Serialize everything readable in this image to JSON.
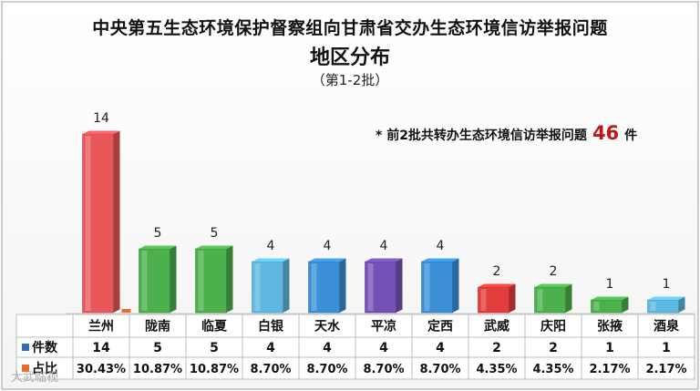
{
  "header": {
    "title": "中央第五生态环境保护督察组向甘肃省交办生态环境信访举报问题",
    "subtitle": "地区分布",
    "batch": "（第1-2批）"
  },
  "note": {
    "prefix": "*  前2批共转办生态环境信访举报问题",
    "total": "46",
    "suffix": "件"
  },
  "watermark": "大武临视",
  "chart_data": {
    "type": "bar",
    "title": "地区分布",
    "categories": [
      "兰州",
      "陇南",
      "临夏",
      "白银",
      "天水",
      "平凉",
      "定西",
      "武威",
      "庆阳",
      "张掖",
      "酒泉"
    ],
    "series": [
      {
        "name": "件数",
        "values": [
          14,
          5,
          5,
          4,
          4,
          4,
          4,
          2,
          2,
          1,
          1
        ],
        "color": "#2f6fb6"
      },
      {
        "name": "占比",
        "values": [
          "30.43%",
          "10.87%",
          "10.87%",
          "8.70%",
          "8.70%",
          "8.70%",
          "8.70%",
          "4.35%",
          "4.35%",
          "2.17%",
          "2.17%"
        ],
        "color": "#e0702a"
      }
    ],
    "bar_colors": [
      "#e8585a",
      "#4cb04c",
      "#4cb04c",
      "#5fb8e2",
      "#3a8fd6",
      "#7452b5",
      "#3a8fd6",
      "#e23c3c",
      "#4cb04c",
      "#4cb04c",
      "#5fb8e2"
    ],
    "ylim": [
      0,
      14
    ],
    "grid": false,
    "legend": "bottom-left table"
  }
}
